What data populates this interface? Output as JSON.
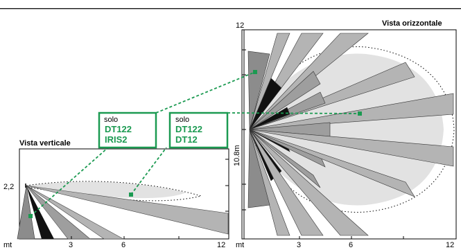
{
  "vertical_view": {
    "title": "Vista verticale",
    "height_label": "2,2",
    "x_unit": "mt",
    "x_ticks": [
      "3",
      "6",
      "12"
    ]
  },
  "horizontal_view": {
    "title": "Vista orizzontale",
    "top_label": "12",
    "side_label": "10.8m",
    "x_unit": "mt",
    "x_ticks": [
      "3",
      "6",
      "12"
    ]
  },
  "badges": [
    {
      "small": "solo",
      "line1": "DT122",
      "line2": "IRIS2"
    },
    {
      "small": "solo",
      "line1": "DT122",
      "line2": "DT12"
    }
  ],
  "colors": {
    "accent_green": "#1b9a51",
    "zone_light": "#e2e2e2",
    "beam_mid": "#b4b4b4",
    "beam_dark": "#7a7a7a",
    "beam_black": "#111111"
  }
}
